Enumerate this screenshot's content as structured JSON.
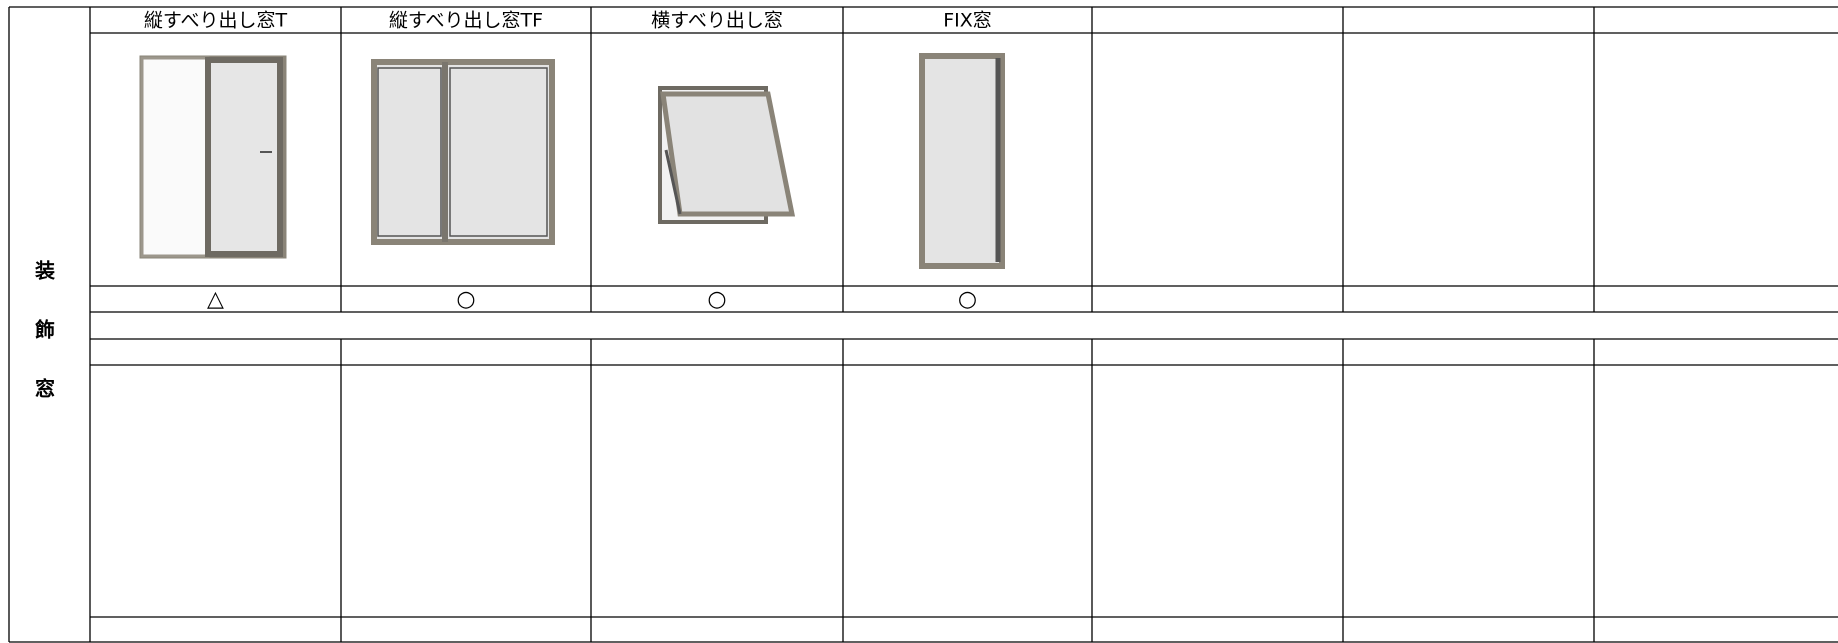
{
  "side_label": [
    "装",
    "飾",
    "窓"
  ],
  "table": {
    "headers": [
      "縦すべり出し窓T",
      "縦すべり出し窓TF",
      "横すべり出し窓",
      "FIX窓"
    ],
    "symbols": [
      "△",
      "○",
      "○",
      "○"
    ]
  }
}
